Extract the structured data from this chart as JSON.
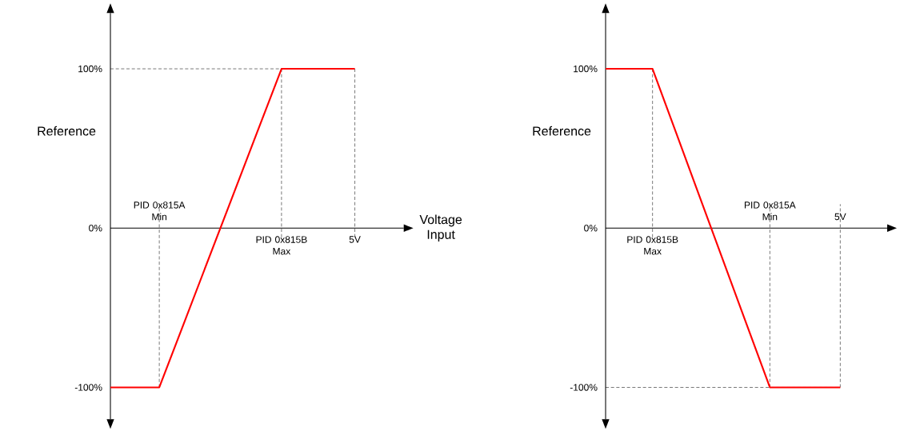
{
  "chart_data": [
    {
      "type": "line",
      "ylabel": "Reference",
      "xlabel": "Voltage Input",
      "ylim": [
        -120,
        135
      ],
      "marker": "none",
      "line_style": "solid",
      "categories": [
        null,
        null,
        "PID 0x815A Min",
        null,
        null,
        null,
        null,
        "PID 0x815B Max",
        null,
        null,
        "5V"
      ],
      "yticks": [
        {
          "value": -100,
          "label": "-100%"
        },
        {
          "value": 0,
          "label": "0%"
        },
        {
          "value": 100,
          "label": "100%"
        }
      ],
      "series": [
        {
          "color": "#ff0000",
          "values": [
            -100,
            -100,
            -100,
            -60,
            -20,
            20,
            60,
            100,
            100,
            100,
            100
          ]
        }
      ],
      "ref_lines": [
        {
          "axis": "y",
          "value": 100,
          "color": "#000000",
          "line_style": "dashed"
        },
        {
          "axis": "x",
          "value": "PID 0x815A Min",
          "color": "#000000",
          "line_style": "dashed"
        },
        {
          "axis": "x",
          "value": "PID 0x815B Max",
          "color": "#000000",
          "line_style": "dashed"
        },
        {
          "axis": "x",
          "value": "5V",
          "color": "#000000",
          "line_style": "dashed"
        }
      ]
    },
    {
      "type": "line",
      "ylabel": "Reference",
      "ylim": [
        -120,
        135
      ],
      "marker": "none",
      "line_style": "solid",
      "categories": [
        null,
        null,
        "PID 0x815B Max",
        null,
        null,
        null,
        null,
        "PID 0x815A Min",
        null,
        null,
        "5V"
      ],
      "yticks": [
        {
          "value": -100,
          "label": "-100%"
        },
        {
          "value": 0,
          "label": "0%"
        },
        {
          "value": 100,
          "label": "100%"
        }
      ],
      "series": [
        {
          "color": "#ff0000",
          "values": [
            100,
            100,
            100,
            60,
            20,
            -20,
            -60,
            -100,
            -100,
            -100,
            -100
          ]
        }
      ],
      "ref_lines": [
        {
          "axis": "y",
          "value": -100,
          "color": "#000000",
          "line_style": "dashed"
        },
        {
          "axis": "x",
          "value": "PID 0x815B Max",
          "color": "#000000",
          "line_style": "dashed"
        },
        {
          "axis": "x",
          "value": "PID 0x815A Min",
          "color": "#000000",
          "line_style": "dashed"
        },
        {
          "axis": "x",
          "value": "5V",
          "color": "#000000",
          "line_style": "dashed"
        }
      ]
    }
  ]
}
